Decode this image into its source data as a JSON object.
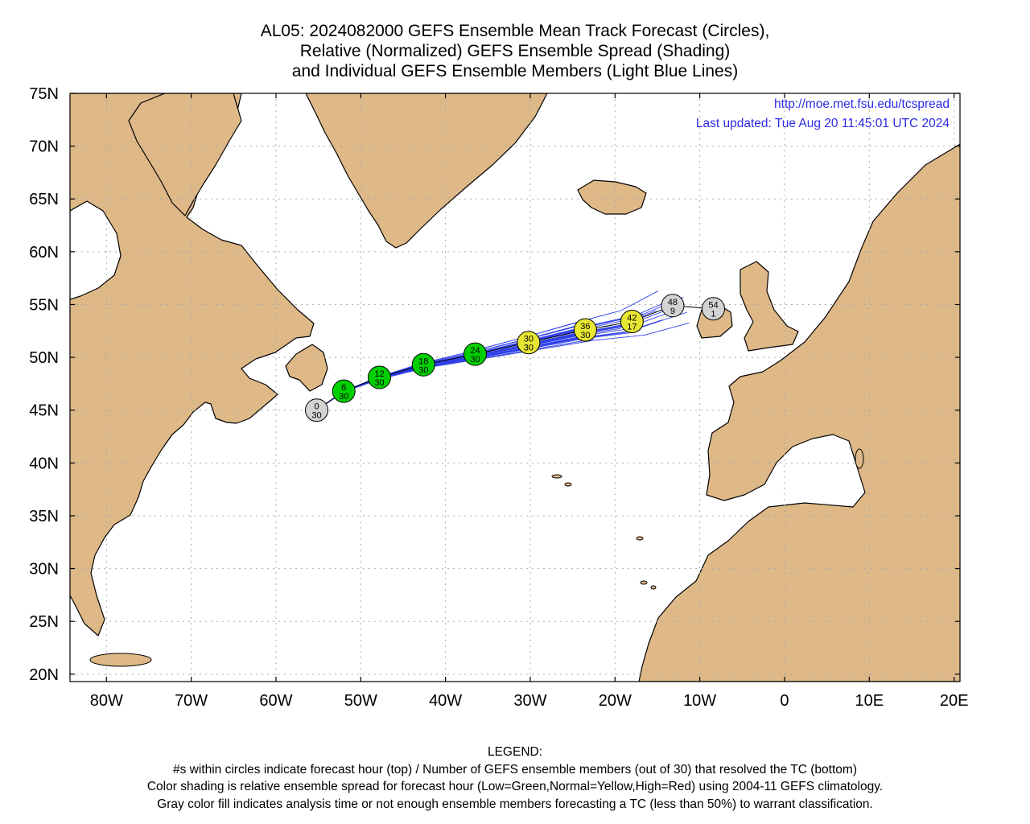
{
  "title": {
    "line1": "AL05: 2024082000 GEFS Ensemble Mean Track Forecast (Circles),",
    "line2": "Relative (Normalized) GEFS Ensemble Spread (Shading)",
    "line3": "and Individual GEFS Ensemble Members (Light Blue Lines)"
  },
  "info": {
    "url": "http://moe.met.fsu.edu/tcspread",
    "updated": "Last updated: Tue Aug 20 11:45:01 UTC 2024"
  },
  "axes": {
    "lat_labels": [
      "75N",
      "70N",
      "65N",
      "60N",
      "55N",
      "50N",
      "45N",
      "40N",
      "35N",
      "30N",
      "25N",
      "20N"
    ],
    "lon_labels": [
      "80W",
      "70W",
      "60W",
      "50W",
      "40W",
      "30W",
      "20W",
      "10W",
      "0",
      "10E",
      "20E"
    ]
  },
  "colors": {
    "land": "#deb887",
    "ocean": "#ffffff",
    "mean_track": "#000000",
    "member_tracks": "#2f3fe8",
    "low_spread": "#00d000",
    "normal_spread": "#e6e633",
    "unclassified": "#d3d3d3"
  },
  "track_points": [
    {
      "hour": "0",
      "members": "30",
      "lon": -55.2,
      "lat": 45.0,
      "class": "gray"
    },
    {
      "hour": "6",
      "members": "30",
      "lon": -52.0,
      "lat": 46.8,
      "class": "green"
    },
    {
      "hour": "12",
      "members": "30",
      "lon": -47.8,
      "lat": 48.1,
      "class": "green"
    },
    {
      "hour": "18",
      "members": "30",
      "lon": -42.6,
      "lat": 49.3,
      "class": "green"
    },
    {
      "hour": "24",
      "members": "30",
      "lon": -36.5,
      "lat": 50.3,
      "class": "green"
    },
    {
      "hour": "30",
      "members": "30",
      "lon": -30.2,
      "lat": 51.4,
      "class": "yellow"
    },
    {
      "hour": "36",
      "members": "30",
      "lon": -23.5,
      "lat": 52.6,
      "class": "yellow"
    },
    {
      "hour": "42",
      "members": "17",
      "lon": -18.0,
      "lat": 53.4,
      "class": "yellow"
    },
    {
      "hour": "48",
      "members": "9",
      "lon": -13.2,
      "lat": 54.9,
      "class": "gray"
    },
    {
      "hour": "54",
      "members": "1",
      "lon": -8.4,
      "lat": 54.6,
      "class": "gray"
    }
  ],
  "legend": {
    "heading": "LEGEND:",
    "line1": "#s within circles indicate forecast hour (top) / Number of GEFS ensemble members (out of 30) that resolved the TC (bottom)",
    "line2": "Color shading is relative ensemble spread for forecast hour (Low=Green,Normal=Yellow,High=Red) using 2004-11 GEFS climatology.",
    "line3": "Gray color fill indicates analysis time or not enough ensemble members forecasting a TC (less than 50%) to warrant classification."
  }
}
